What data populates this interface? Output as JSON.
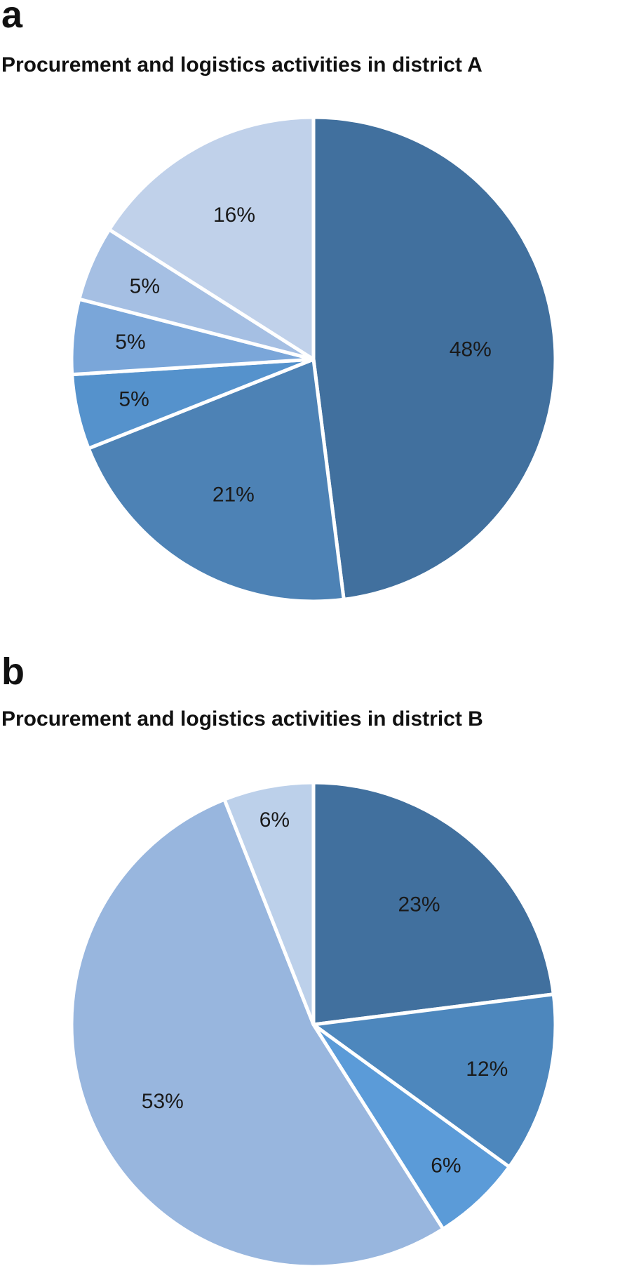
{
  "chart_data": [
    {
      "panel": "a",
      "type": "pie",
      "title": "Procurement and logistics activities in district A",
      "slices": [
        {
          "value": 48,
          "label": "48%",
          "color": "#41709e"
        },
        {
          "value": 21,
          "label": "21%",
          "color": "#4d82b5"
        },
        {
          "value": 5,
          "label": "5%",
          "color": "#5592cc"
        },
        {
          "value": 5,
          "label": "5%",
          "color": "#7aa6d9"
        },
        {
          "value": 5,
          "label": "5%",
          "color": "#a5bfe3"
        },
        {
          "value": 16,
          "label": "16%",
          "color": "#c0d1ea"
        }
      ]
    },
    {
      "panel": "b",
      "type": "pie",
      "title": "Procurement and logistics activities in district B",
      "slices": [
        {
          "value": 23,
          "label": "23%",
          "color": "#41709e"
        },
        {
          "value": 12,
          "label": "12%",
          "color": "#4d87bd"
        },
        {
          "value": 6,
          "label": "6%",
          "color": "#5b9bd8"
        },
        {
          "value": 53,
          "label": "53%",
          "color": "#98b6de"
        },
        {
          "value": 6,
          "label": "6%",
          "color": "#bcd0ea"
        }
      ]
    }
  ]
}
